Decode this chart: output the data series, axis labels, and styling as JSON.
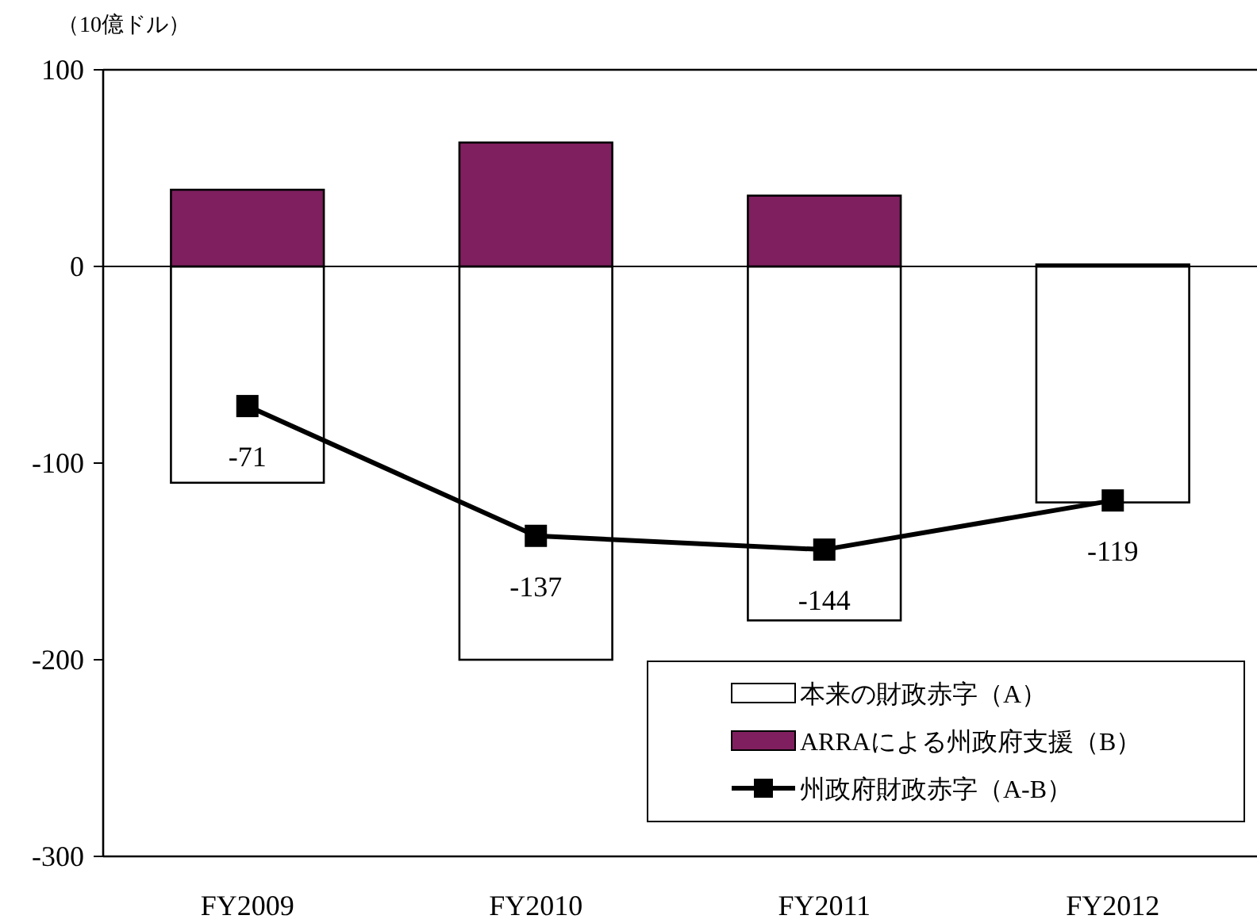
{
  "chart_data": {
    "type": "bar",
    "ylabel": "（10億ドル）",
    "categories": [
      "FY2009",
      "FY2010",
      "FY2011",
      "FY2012"
    ],
    "series": [
      {
        "name": "本来の財政赤字（A）",
        "color": "#ffffff",
        "values": [
          -110,
          -200,
          -180,
          -120
        ]
      },
      {
        "name": "ARRAによる州政府支援（B）",
        "color": "#7f1f5f",
        "values": [
          39,
          63,
          36,
          1
        ]
      },
      {
        "name": "州政府財政赤字（A-B）",
        "type": "line",
        "color": "#000000",
        "marker": "square",
        "values": [
          -71,
          -137,
          -144,
          -119
        ],
        "value_labels": [
          "-71",
          "-137",
          "-144",
          "-119"
        ]
      }
    ],
    "stacked": true,
    "ref_lines": [
      {
        "axis": "y",
        "value": 0,
        "color": "#000000"
      }
    ],
    "ylim": [
      -300,
      100
    ],
    "yticks": [
      -300,
      -200,
      -100,
      0,
      100
    ],
    "legend": "bottom right"
  }
}
